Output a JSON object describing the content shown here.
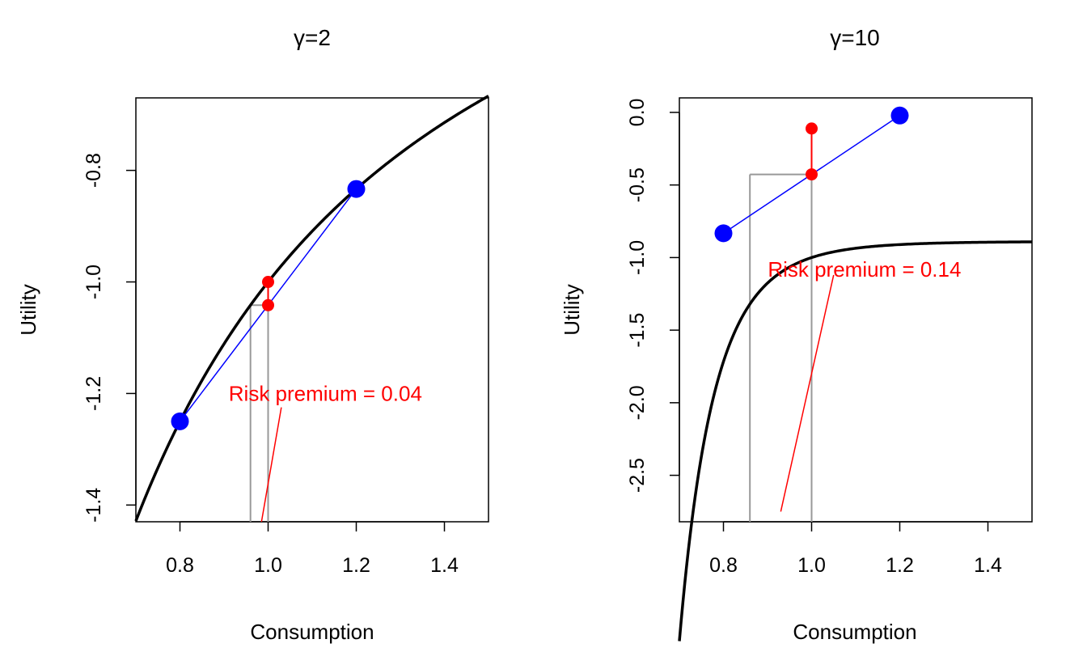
{
  "chart_data": [
    {
      "type": "line",
      "title": "γ=2",
      "gamma": 2,
      "xlabel": "Consumption",
      "ylabel": "Utility",
      "xlim": [
        0.7,
        1.5
      ],
      "ylim": [
        -1.43,
        -0.67
      ],
      "xticks": [
        0.8,
        1.0,
        1.2,
        1.4
      ],
      "xtick_labels": [
        "0.8",
        "1.0",
        "1.2",
        "1.4"
      ],
      "yticks": [
        -1.4,
        -1.2,
        -1.0,
        -0.8
      ],
      "ytick_labels": [
        "-1.4",
        "-1.2",
        "-1.0",
        "-0.8"
      ],
      "curve": {
        "x_start": 0.7,
        "x_end": 1.5,
        "color": "#000000"
      },
      "lottery_points": [
        {
          "x": 0.8,
          "y": -1.25
        },
        {
          "x": 1.2,
          "y": -0.8333
        }
      ],
      "mean_points": [
        {
          "x": 1.0,
          "y": -1.0
        },
        {
          "x": 1.0,
          "y": -1.0417
        }
      ],
      "certainty_equivalent": 0.96,
      "annotation": {
        "text": "Risk premium = 0.04",
        "x": 1.13,
        "y": -1.2,
        "arrow_from": [
          1.03,
          -1.225
        ],
        "arrow_to": [
          0.985,
          -1.43
        ]
      },
      "colors": {
        "curve": "#000000",
        "chord": "#0000ff",
        "points": "#0000ff",
        "mean": "#ff0000",
        "guide": "#999999",
        "annotation": "#ff0000"
      }
    },
    {
      "type": "line",
      "title": "γ=10",
      "gamma": 10,
      "xlabel": "Consumption",
      "ylabel": "Utility",
      "xlim": [
        0.7,
        1.5
      ],
      "ylim": [
        -2.82,
        0.1
      ],
      "xticks": [
        0.8,
        1.0,
        1.2,
        1.4
      ],
      "xtick_labels": [
        "0.8",
        "1.0",
        "1.2",
        "1.4"
      ],
      "yticks": [
        -2.5,
        -2.0,
        -1.5,
        -1.0,
        -0.5,
        0.0
      ],
      "ytick_labels": [
        "-2.5",
        "-2.0",
        "-1.5",
        "-1.0",
        "-0.5",
        "0.0"
      ],
      "curve": {
        "x_start": 0.7,
        "x_end": 1.5,
        "color": "#000000"
      },
      "lottery_points": [
        {
          "x": 0.8,
          "y": -0.8326
        },
        {
          "x": 1.2,
          "y": -0.0215
        }
      ],
      "mean_points": [
        {
          "x": 1.0,
          "y": -0.1111
        },
        {
          "x": 1.0,
          "y": -0.427
        }
      ],
      "certainty_equivalent": 0.86,
      "annotation": {
        "text": "Risk premium = 0.14",
        "x": 1.12,
        "y": -1.08,
        "arrow_from": [
          1.05,
          -1.12
        ],
        "arrow_to": [
          0.93,
          -2.75
        ]
      },
      "colors": {
        "curve": "#000000",
        "chord": "#0000ff",
        "points": "#0000ff",
        "mean": "#ff0000",
        "guide": "#999999",
        "annotation": "#ff0000"
      }
    }
  ]
}
